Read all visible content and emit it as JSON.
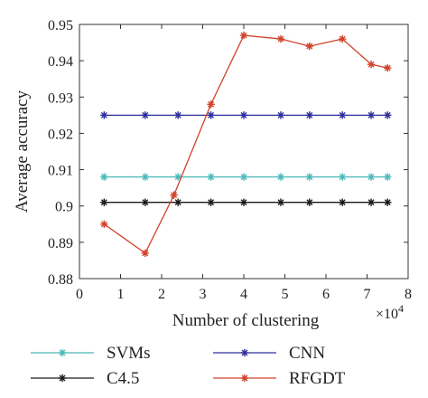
{
  "chart_data": {
    "type": "line",
    "xlabel": "Number of clustering",
    "ylabel": "Average accuracy",
    "x_multiplier_label": "×10",
    "x_multiplier_exponent": "4",
    "xlim": [
      0,
      8
    ],
    "ylim": [
      0.88,
      0.95
    ],
    "x_ticks": [
      0,
      1,
      2,
      3,
      4,
      5,
      6,
      7,
      8
    ],
    "x_tick_labels": [
      "0",
      "1",
      "2",
      "3",
      "4",
      "5",
      "6",
      "7",
      "8"
    ],
    "y_ticks": [
      0.88,
      0.89,
      0.9,
      0.91,
      0.92,
      0.93,
      0.94,
      0.95
    ],
    "y_tick_labels": [
      "0.88",
      "0.89",
      "0.9",
      "0.91",
      "0.92",
      "0.93",
      "0.94",
      "0.95"
    ],
    "grid": false,
    "legend_position": "bottom",
    "series": [
      {
        "name": "SVMs",
        "color": "#4cb8b8",
        "x": [
          0.6,
          1.6,
          2.4,
          3.2,
          4.0,
          4.9,
          5.6,
          6.4,
          7.1,
          7.5
        ],
        "y": [
          0.908,
          0.908,
          0.908,
          0.908,
          0.908,
          0.908,
          0.908,
          0.908,
          0.908,
          0.908
        ]
      },
      {
        "name": "CNN",
        "color": "#2e2e9e",
        "x": [
          0.6,
          1.6,
          2.4,
          3.2,
          4.0,
          4.9,
          5.6,
          6.4,
          7.1,
          7.5
        ],
        "y": [
          0.925,
          0.925,
          0.925,
          0.925,
          0.925,
          0.925,
          0.925,
          0.925,
          0.925,
          0.925
        ]
      },
      {
        "name": "C4.5",
        "color": "#1a1a1a",
        "x": [
          0.6,
          1.6,
          2.4,
          3.2,
          4.0,
          4.9,
          5.6,
          6.4,
          7.1,
          7.5
        ],
        "y": [
          0.901,
          0.901,
          0.901,
          0.901,
          0.901,
          0.901,
          0.901,
          0.901,
          0.901,
          0.901
        ]
      },
      {
        "name": "RFGDT",
        "color": "#d0432a",
        "x": [
          0.6,
          1.6,
          2.3,
          3.2,
          4.0,
          4.9,
          5.6,
          6.4,
          7.1,
          7.5
        ],
        "y": [
          0.895,
          0.887,
          0.903,
          0.928,
          0.947,
          0.946,
          0.944,
          0.946,
          0.939,
          0.938
        ]
      }
    ]
  }
}
